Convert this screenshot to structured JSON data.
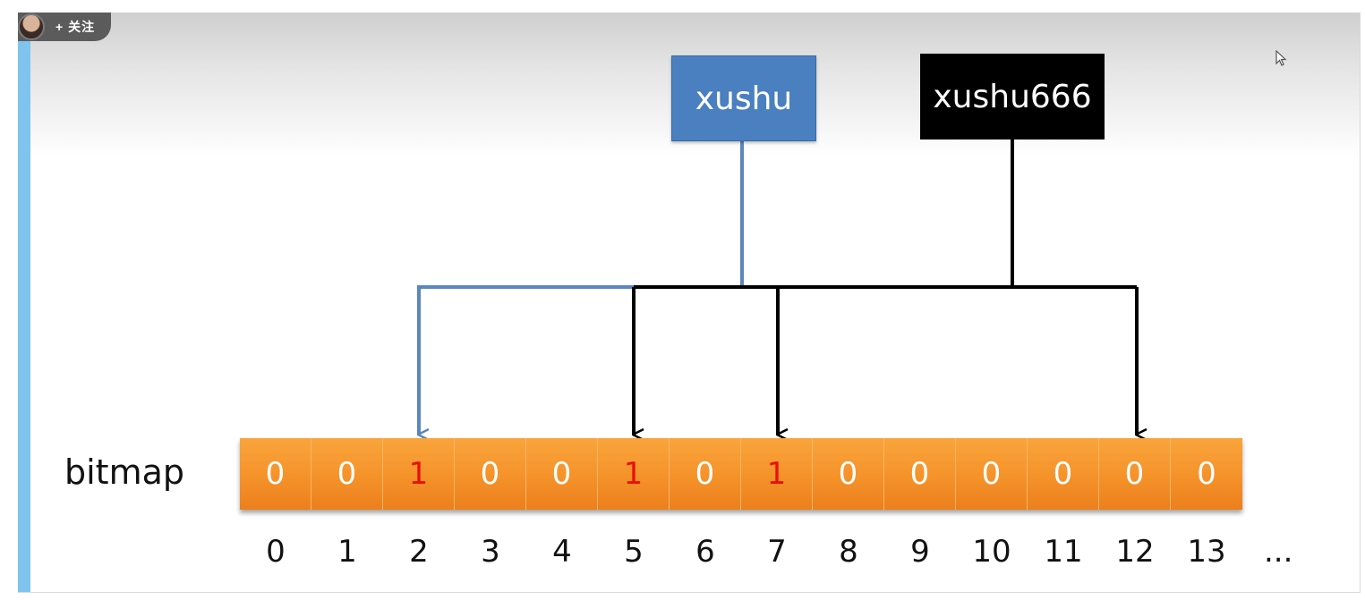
{
  "overlay": {
    "follow_label": "+ 关注"
  },
  "diagram": {
    "keys": [
      {
        "label": "xushu",
        "color": "#4a7fc0",
        "hashes_to": [
          2
        ]
      },
      {
        "label": "xushu666",
        "color": "#000000",
        "hashes_to": [
          5,
          7,
          12
        ]
      }
    ],
    "bitmap_label": "bitmap",
    "bits": [
      {
        "index": "0",
        "value": "0"
      },
      {
        "index": "1",
        "value": "0"
      },
      {
        "index": "2",
        "value": "1"
      },
      {
        "index": "3",
        "value": "0"
      },
      {
        "index": "4",
        "value": "0"
      },
      {
        "index": "5",
        "value": "1"
      },
      {
        "index": "6",
        "value": "0"
      },
      {
        "index": "7",
        "value": "1"
      },
      {
        "index": "8",
        "value": "0"
      },
      {
        "index": "9",
        "value": "0"
      },
      {
        "index": "10",
        "value": "0"
      },
      {
        "index": "11",
        "value": "0"
      },
      {
        "index": "12",
        "value": "0"
      },
      {
        "index": "13",
        "value": "0"
      }
    ],
    "ellipsis": "...",
    "colors": {
      "cell": "#f5922a",
      "set_bit_text": "#e8100c",
      "unset_bit_text": "#ffffff",
      "blue_line": "#5b86bf",
      "black_line": "#000000"
    }
  }
}
